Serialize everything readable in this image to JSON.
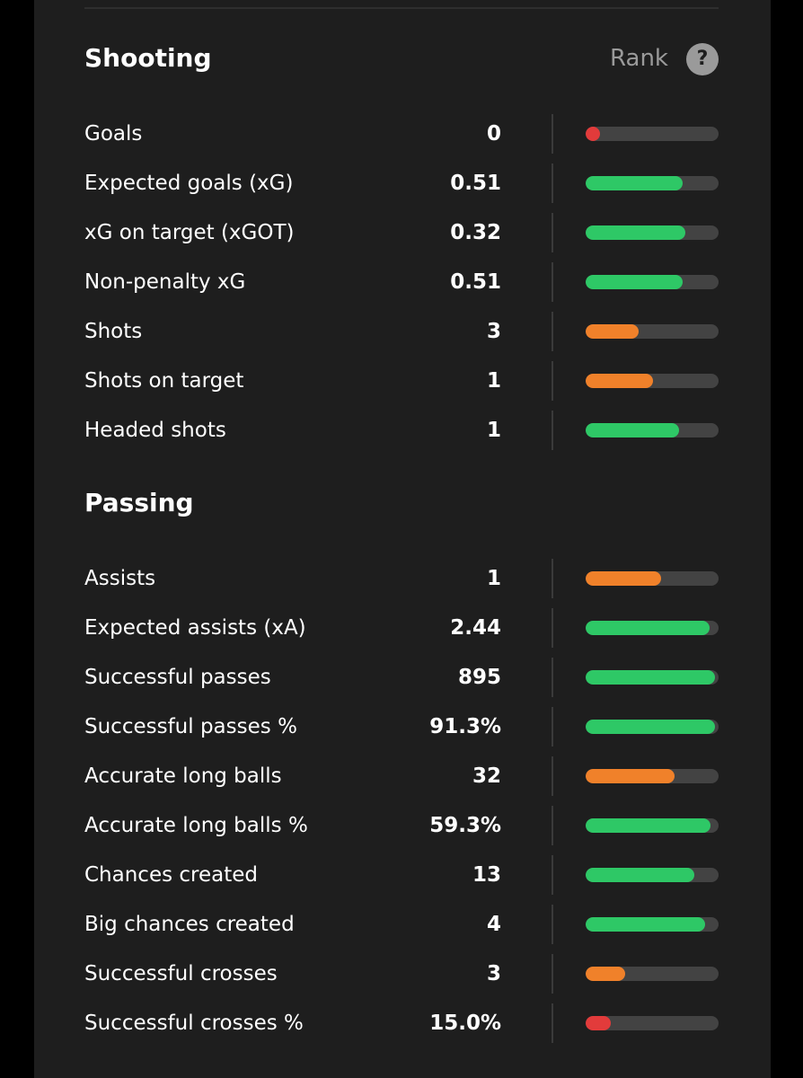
{
  "colors": {
    "background": "#000000",
    "card": "#1e1e1e",
    "high": "#2ec866",
    "mid": "#f0812a",
    "low": "#e23b3b",
    "track": "#434343"
  },
  "shooting": {
    "title": "Shooting",
    "rank_label": "Rank",
    "help_icon": "?",
    "rows": [
      {
        "label": "Goals",
        "value": "0",
        "rank": 0.07,
        "level": "low"
      },
      {
        "label": "Expected goals (xG)",
        "value": "0.51",
        "rank": 0.73,
        "level": "high"
      },
      {
        "label": "xG on target (xGOT)",
        "value": "0.32",
        "rank": 0.75,
        "level": "high"
      },
      {
        "label": "Non-penalty xG",
        "value": "0.51",
        "rank": 0.73,
        "level": "high"
      },
      {
        "label": "Shots",
        "value": "3",
        "rank": 0.4,
        "level": "mid"
      },
      {
        "label": "Shots on target",
        "value": "1",
        "rank": 0.51,
        "level": "mid"
      },
      {
        "label": "Headed shots",
        "value": "1",
        "rank": 0.7,
        "level": "high"
      }
    ]
  },
  "passing": {
    "title": "Passing",
    "rows": [
      {
        "label": "Assists",
        "value": "1",
        "rank": 0.57,
        "level": "mid"
      },
      {
        "label": "Expected assists (xA)",
        "value": "2.44",
        "rank": 0.93,
        "level": "high"
      },
      {
        "label": "Successful passes",
        "value": "895",
        "rank": 0.97,
        "level": "high"
      },
      {
        "label": "Successful passes %",
        "value": "91.3%",
        "rank": 0.97,
        "level": "high"
      },
      {
        "label": "Accurate long balls",
        "value": "32",
        "rank": 0.67,
        "level": "mid"
      },
      {
        "label": "Accurate long balls %",
        "value": "59.3%",
        "rank": 0.94,
        "level": "high"
      },
      {
        "label": "Chances created",
        "value": "13",
        "rank": 0.82,
        "level": "high"
      },
      {
        "label": "Big chances created",
        "value": "4",
        "rank": 0.9,
        "level": "high"
      },
      {
        "label": "Successful crosses",
        "value": "3",
        "rank": 0.3,
        "level": "mid"
      },
      {
        "label": "Successful crosses %",
        "value": "15.0%",
        "rank": 0.19,
        "level": "low"
      }
    ]
  }
}
